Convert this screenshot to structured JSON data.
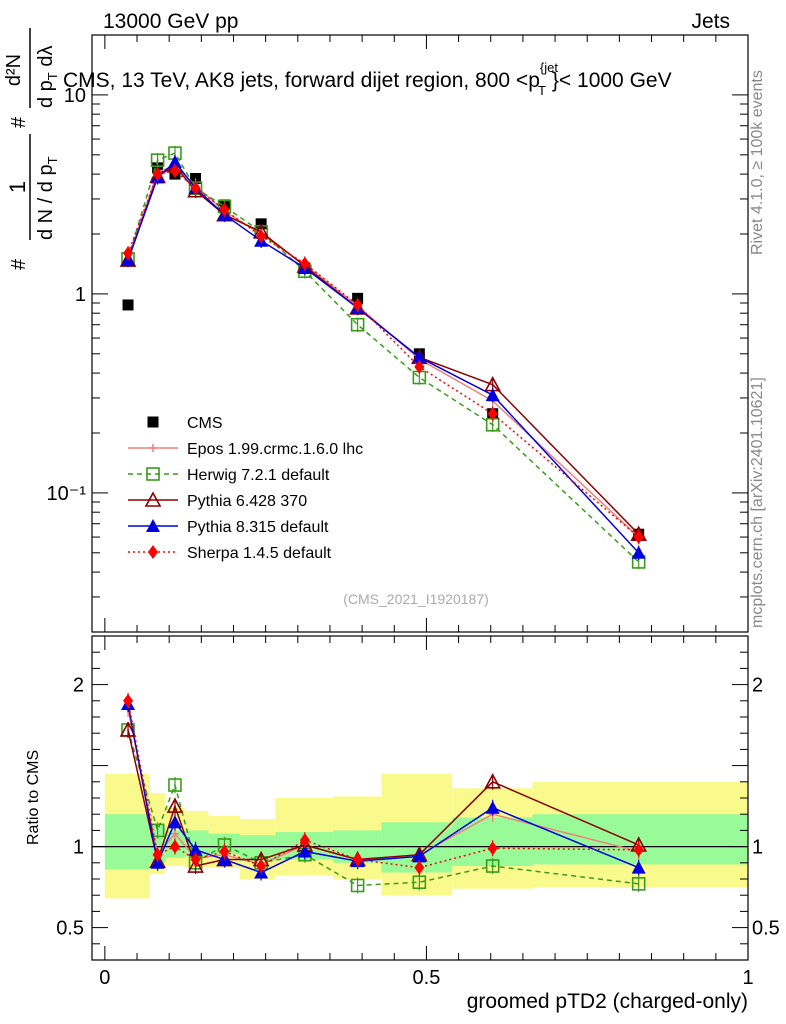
{
  "header": {
    "left": "13000 GeV pp",
    "right": "Jets"
  },
  "title": {
    "prefix": "CMS, 13 TeV, AK8 jets, forward dijet region, 800 <p",
    "sup": "{jet",
    "sub": "T",
    "suffix": "}< 1000 GeV"
  },
  "ylabel_main": {
    "frac1_num": "1",
    "frac1_den": "d N / d p",
    "frac1_den_sub": "T",
    "frac2_num": "d²N",
    "frac2_den_a": "d p",
    "frac2_den_sub": "T",
    "frac2_den_b": " dλ",
    "hash": "#"
  },
  "ylabel_ratio": "Ratio to CMS",
  "xlabel": "groomed pTD2 (charged-only)",
  "side_right_top": "Rivet 4.1.0, ≥ 100k events",
  "side_right_bottom": "mcplots.cern.ch [arXiv:2401.10621]",
  "watermark": "(CMS_2021_I1920187)",
  "colors": {
    "data": "#000000",
    "epos": "#f08080",
    "herwig": "#3a9b1a",
    "pythia6": "#8b0000",
    "pythia8": "#0000e0",
    "sherpa": "#ff0000",
    "band_inner": "#98fb98",
    "band_outer": "#fafa8c"
  },
  "chart_data": [
    {
      "type": "line",
      "panel": "main",
      "yscale": "log",
      "xlim": [
        -0.02,
        1.0
      ],
      "ylim": [
        0.02,
        20
      ],
      "y_tick_labels": [
        "10",
        "1",
        "10⁻¹"
      ],
      "x": [
        0.036,
        0.082,
        0.109,
        0.141,
        0.186,
        0.243,
        0.311,
        0.393,
        0.489,
        0.603,
        0.83
      ],
      "series": [
        {
          "name": "CMS",
          "key": "data",
          "values": [
            0.88,
            4.3,
            4.0,
            3.8,
            2.8,
            2.25,
            1.35,
            0.95,
            0.5,
            0.25,
            0.062
          ]
        },
        {
          "name": "Epos 1.99.crmc.1.6.0 lhc",
          "key": "epos",
          "values": [
            1.5,
            4.1,
            4.4,
            3.5,
            2.6,
            2.0,
            1.4,
            0.87,
            0.47,
            0.29,
            0.06
          ]
        },
        {
          "name": "Herwig 7.2.1 default",
          "key": "herwig",
          "values": [
            1.5,
            4.7,
            5.1,
            3.4,
            2.75,
            2.05,
            1.3,
            0.7,
            0.38,
            0.22,
            0.045
          ]
        },
        {
          "name": "Pythia 6.428 370",
          "key": "pythia6",
          "values": [
            1.48,
            3.9,
            4.4,
            3.3,
            2.5,
            2.05,
            1.38,
            0.85,
            0.48,
            0.35,
            0.062
          ]
        },
        {
          "name": "Pythia 8.315 default",
          "key": "pythia8",
          "values": [
            1.48,
            3.85,
            4.6,
            3.4,
            2.5,
            1.85,
            1.35,
            0.85,
            0.48,
            0.31,
            0.05
          ]
        },
        {
          "name": "Sherpa 1.4.5 default",
          "key": "sherpa",
          "values": [
            1.6,
            4.0,
            4.15,
            3.4,
            2.65,
            1.95,
            1.42,
            0.88,
            0.43,
            0.25,
            0.06
          ]
        }
      ],
      "legend_position": "middle-left"
    },
    {
      "type": "line",
      "panel": "ratio",
      "xlim": [
        -0.02,
        1.0
      ],
      "ylim": [
        0.3,
        2.3
      ],
      "x_tick_labels": [
        "0",
        "0.5",
        "1"
      ],
      "y_tick_labels": [
        "2",
        "1",
        "0.5"
      ],
      "bands": {
        "edges": [
          0.0,
          0.07,
          0.094,
          0.124,
          0.161,
          0.21,
          0.265,
          0.355,
          0.43,
          0.54,
          0.665,
          1.0
        ],
        "inner_low": [
          0.86,
          0.9,
          0.93,
          0.94,
          0.95,
          0.91,
          0.92,
          0.9,
          0.84,
          0.88,
          0.89
        ],
        "inner_high": [
          1.2,
          1.13,
          1.1,
          1.1,
          1.08,
          1.07,
          1.09,
          1.1,
          1.15,
          1.18,
          1.2
        ],
        "outer_low": [
          0.68,
          0.83,
          0.88,
          0.87,
          0.87,
          0.8,
          0.82,
          0.8,
          0.7,
          0.74,
          0.75
        ],
        "outer_high": [
          1.45,
          1.33,
          1.24,
          1.22,
          1.19,
          1.17,
          1.3,
          1.31,
          1.45,
          1.36,
          1.4
        ]
      },
      "x": [
        0.036,
        0.082,
        0.109,
        0.141,
        0.186,
        0.243,
        0.311,
        0.393,
        0.489,
        0.603,
        0.83
      ],
      "series": [
        {
          "name": "Epos 1.99.crmc.1.6.0 lhc",
          "key": "epos",
          "values": [
            1.85,
            0.95,
            1.08,
            0.93,
            0.95,
            0.89,
            1.01,
            0.92,
            0.95,
            1.2,
            0.97
          ]
        },
        {
          "name": "Herwig 7.2.1 default",
          "key": "herwig",
          "values": [
            1.72,
            1.1,
            1.38,
            0.9,
            1.01,
            0.9,
            0.95,
            0.76,
            0.78,
            0.88,
            0.77
          ]
        },
        {
          "name": "Pythia 6.428 370",
          "key": "pythia6",
          "values": [
            1.72,
            0.91,
            1.25,
            0.88,
            0.92,
            0.92,
            1.01,
            0.92,
            0.95,
            1.4,
            1.01
          ]
        },
        {
          "name": "Pythia 8.315 default",
          "key": "pythia8",
          "values": [
            1.88,
            0.9,
            1.15,
            0.98,
            0.92,
            0.84,
            0.97,
            0.91,
            0.94,
            1.24,
            0.87
          ]
        },
        {
          "name": "Sherpa 1.4.5 default",
          "key": "sherpa",
          "values": [
            1.9,
            0.95,
            1.0,
            0.92,
            0.97,
            0.88,
            1.04,
            0.92,
            0.87,
            0.99,
            0.98
          ]
        }
      ]
    }
  ]
}
